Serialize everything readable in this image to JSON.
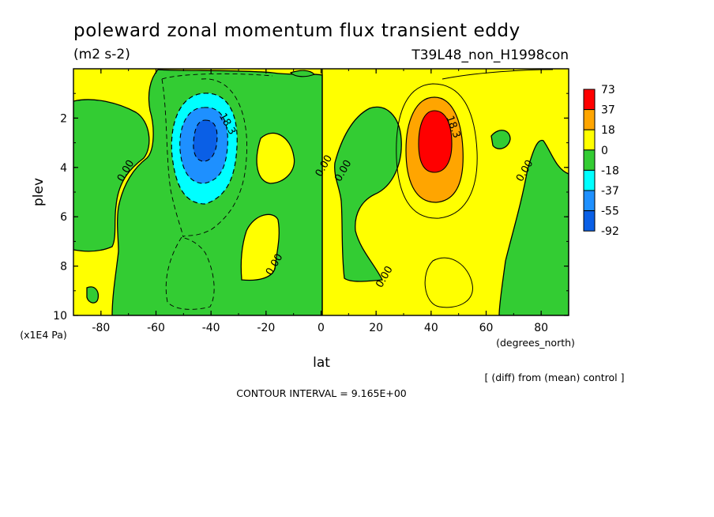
{
  "header": {
    "title": "poleward zonal momentum flux transient eddy",
    "units": "(m2 s-2)",
    "run_id": "T39L48_non_H1998con"
  },
  "footer": {
    "diff_note": "[ (diff) from (mean) control ]",
    "contour_interval": "CONTOUR INTERVAL = 9.165E+00"
  },
  "colors": {
    "red": "#ff0000",
    "orange": "#ffa500",
    "yellow": "#ffff00",
    "green": "#33cc33",
    "cyan": "#00ffff",
    "mid_blue": "#1e90ff",
    "blue": "#0a5fe6",
    "axis": "#000000"
  },
  "chart_data": {
    "type": "heatmap",
    "variable": "poleward zonal momentum flux transient eddy",
    "units": "(m2 s-2)",
    "xlabel": "lat",
    "xunit": "(degrees_north)",
    "ylabel": "plev",
    "yunit": "(x1E4 Pa)",
    "xlim": [
      -90,
      90
    ],
    "ylim": [
      10,
      0
    ],
    "x_ticks": [
      -80,
      -60,
      -40,
      -20,
      0,
      20,
      40,
      60,
      80
    ],
    "x_tick_labels": [
      "-80",
      "-60",
      "-40",
      "-20",
      "0",
      "20",
      "40",
      "60",
      "80"
    ],
    "y_ticks": [
      2,
      4,
      6,
      8,
      10
    ],
    "y_tick_labels": [
      "2",
      "4",
      "6",
      "8",
      "10"
    ],
    "colorbar": {
      "labels": [
        "73",
        "37",
        "18",
        "0",
        "-18",
        "-37",
        "-55",
        "-92"
      ],
      "colors": [
        "#ff0000",
        "#ffa500",
        "#ffff00",
        "#33cc33",
        "#00ffff",
        "#1e90ff",
        "#0a5fe6"
      ]
    },
    "contour_interval": 9.165,
    "contour_labels": [
      {
        "text": "18.3",
        "x": -35,
        "y": 2.3
      },
      {
        "text": "18.3",
        "x": 47,
        "y": 2.4
      },
      {
        "text": "0.00",
        "x": -70,
        "y": 4.2
      },
      {
        "text": "0.00",
        "x": 2,
        "y": 4.0
      },
      {
        "text": "0.00",
        "x": 9,
        "y": 4.2
      },
      {
        "text": "0.00",
        "x": 75,
        "y": 4.2
      },
      {
        "text": "0.00",
        "x": -16,
        "y": 8.0
      },
      {
        "text": "0.00",
        "x": 24,
        "y": 8.5
      }
    ],
    "extrema": [
      {
        "label": "negative maximum",
        "x": -40,
        "y": 3.0,
        "value_range": "< -55"
      },
      {
        "label": "positive maximum",
        "x": 40,
        "y": 3.0,
        "value_range": "> 37"
      }
    ]
  }
}
